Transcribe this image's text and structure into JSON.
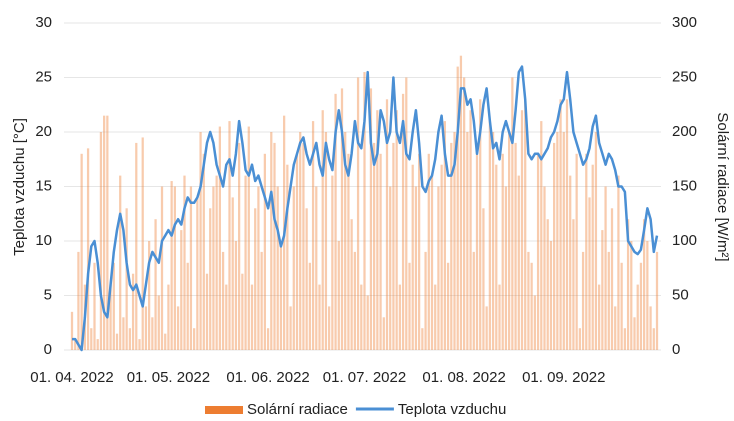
{
  "chart_data": {
    "type": "bar-line",
    "y_label": "Teplota vzduchu [°C]",
    "y2_label": "Solární radiace [W/m²]",
    "categories": [
      "01. 04. 2022",
      null,
      null,
      null,
      null,
      null,
      null,
      null,
      null,
      null,
      null,
      null,
      null,
      null,
      null,
      null,
      null,
      null,
      null,
      null,
      null,
      null,
      null,
      null,
      null,
      null,
      null,
      null,
      null,
      null,
      "01. 05. 2022",
      null,
      null,
      null,
      null,
      null,
      null,
      null,
      null,
      null,
      null,
      null,
      null,
      null,
      null,
      null,
      null,
      null,
      null,
      null,
      null,
      null,
      null,
      null,
      null,
      null,
      null,
      null,
      null,
      null,
      null,
      "01. 06. 2022",
      null,
      null,
      null,
      null,
      null,
      null,
      null,
      null,
      null,
      null,
      null,
      null,
      null,
      null,
      null,
      null,
      null,
      null,
      null,
      null,
      null,
      null,
      null,
      null,
      null,
      null,
      null,
      null,
      null,
      "01. 07. 2022",
      null,
      null,
      null,
      null,
      null,
      null,
      null,
      null,
      null,
      null,
      null,
      null,
      null,
      null,
      null,
      null,
      null,
      null,
      null,
      null,
      null,
      null,
      null,
      null,
      null,
      null,
      null,
      null,
      null,
      null,
      "01. 08. 2022",
      null,
      null,
      null,
      null,
      null,
      null,
      null,
      null,
      null,
      null,
      null,
      null,
      null,
      null,
      null,
      null,
      null,
      null,
      null,
      null,
      null,
      null,
      null,
      null,
      null,
      null,
      null,
      null,
      null,
      null,
      "01. 09. 2022",
      null,
      null,
      null,
      null,
      null,
      null,
      null,
      null,
      null,
      null,
      null,
      null,
      null,
      null,
      null,
      null,
      null,
      null,
      null,
      null,
      null,
      null,
      null,
      null,
      null,
      null,
      null,
      null,
      null
    ],
    "series": [
      {
        "name": "Solární radiace",
        "type": "bar",
        "axis": "y2",
        "color": "#ed7d31",
        "values": [
          35,
          10,
          90,
          180,
          60,
          185,
          20,
          80,
          10,
          200,
          215,
          215,
          60,
          80,
          15,
          160,
          30,
          130,
          20,
          70,
          190,
          10,
          195,
          40,
          100,
          30,
          120,
          50,
          150,
          15,
          60,
          155,
          150,
          40,
          110,
          160,
          80,
          150,
          20,
          140,
          200,
          180,
          70,
          130,
          150,
          160,
          205,
          90,
          60,
          210,
          140,
          100,
          190,
          70,
          160,
          205,
          60,
          130,
          150,
          90,
          180,
          20,
          200,
          190,
          150,
          100,
          215,
          170,
          40,
          150,
          180,
          200,
          190,
          130,
          80,
          210,
          150,
          60,
          220,
          200,
          40,
          160,
          235,
          100,
          240,
          200,
          180,
          120,
          90,
          250,
          60,
          255,
          50,
          240,
          190,
          220,
          180,
          30,
          230,
          150,
          190,
          220,
          60,
          235,
          250,
          80,
          170,
          150,
          180,
          20,
          90,
          180,
          160,
          60,
          150,
          170,
          210,
          80,
          190,
          200,
          260,
          270,
          250,
          200,
          220,
          90,
          180,
          230,
          130,
          40,
          210,
          200,
          170,
          60,
          180,
          150,
          200,
          250,
          190,
          160,
          220,
          230,
          90,
          80,
          50,
          180,
          210,
          150,
          120,
          100,
          190,
          200,
          230,
          200,
          230,
          160,
          120,
          180,
          20,
          90,
          180,
          140,
          170,
          200,
          60,
          110,
          150,
          90,
          130,
          40,
          160,
          80,
          20,
          120,
          100,
          30,
          60,
          80,
          120,
          100,
          40,
          20,
          90
        ]
      },
      {
        "name": "Teplota vzduchu",
        "type": "line",
        "color": "#4a8fd4",
        "values": [
          1,
          1,
          0.5,
          0,
          3,
          7,
          9.5,
          10,
          8,
          5,
          3.5,
          3,
          6,
          9,
          11,
          12.5,
          11,
          8,
          6,
          5.5,
          6,
          5,
          4,
          6,
          8,
          9,
          8.5,
          8,
          10,
          10.5,
          11,
          10.5,
          11.5,
          12,
          11.5,
          13,
          14,
          13.5,
          13.5,
          14,
          15,
          17,
          19,
          20,
          19,
          17,
          16,
          15,
          17,
          17.5,
          16,
          18,
          21,
          19,
          16.5,
          16,
          17,
          15.5,
          16,
          15,
          14,
          13,
          14.5,
          12,
          11,
          9.5,
          10.5,
          13,
          15,
          17,
          18,
          19,
          19.5,
          18,
          17,
          18,
          19,
          17,
          16,
          19,
          17.5,
          16.5,
          20,
          22,
          20,
          17,
          16,
          18,
          21,
          19,
          18.5,
          21,
          25.5,
          19,
          17,
          18,
          22,
          21,
          19,
          20,
          25,
          20,
          19,
          21,
          18,
          17.5,
          20,
          22,
          19,
          15,
          14.5,
          15.5,
          16,
          17.5,
          20,
          21.5,
          18,
          16,
          16,
          17,
          20,
          24,
          24,
          22.5,
          23,
          21,
          18,
          20,
          22.5,
          24,
          21,
          18.5,
          19,
          17.5,
          20,
          21,
          20,
          19,
          22,
          25.5,
          26,
          23,
          18,
          17.5,
          18,
          18,
          17.5,
          18,
          18.5,
          19.5,
          20,
          21,
          22.5,
          23,
          25.5,
          23,
          20,
          19,
          18,
          17,
          17.5,
          18.5,
          20.5,
          21.5,
          19,
          18,
          17,
          18,
          17.5,
          16.5,
          15,
          15,
          14.5,
          10,
          9.5,
          9,
          8.8,
          9.2,
          11,
          13,
          12,
          9,
          10.5
        ]
      }
    ],
    "ylim": [
      0,
      30
    ],
    "yticks": [
      0,
      5,
      10,
      15,
      20,
      25,
      30
    ],
    "y2lim": [
      0,
      300
    ],
    "y2ticks": [
      0,
      50,
      100,
      150,
      200,
      250,
      300
    ],
    "grid": true,
    "legend": "bottom"
  }
}
